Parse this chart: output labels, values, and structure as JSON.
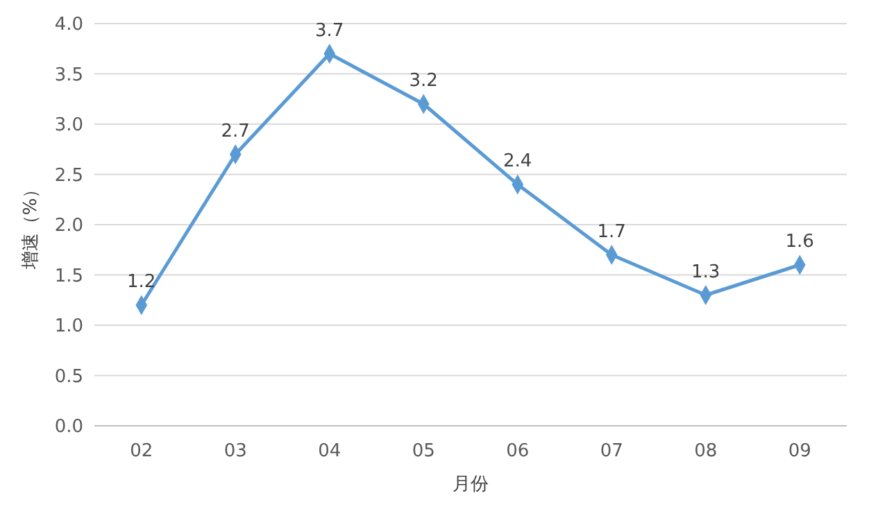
{
  "chart_data": {
    "type": "line",
    "xlabel": "月份",
    "ylabel": "增速（%）",
    "categories": [
      "02",
      "03",
      "04",
      "05",
      "06",
      "07",
      "08",
      "09"
    ],
    "series": [
      {
        "color": "#5b9bd5",
        "values": [
          1.2,
          2.7,
          3.7,
          3.2,
          2.4,
          1.7,
          1.3,
          1.6
        ]
      }
    ],
    "ylim": [
      0,
      4
    ],
    "yticks": [
      {
        "value": 0,
        "label": "0.0"
      },
      {
        "value": 0.5,
        "label": "0.5"
      },
      {
        "value": 1,
        "label": "1.0"
      },
      {
        "value": 1.5,
        "label": "1.5"
      },
      {
        "value": 2,
        "label": "2.0"
      },
      {
        "value": 2.5,
        "label": "2.5"
      },
      {
        "value": 3,
        "label": "3.0"
      },
      {
        "value": 3.5,
        "label": "3.5"
      },
      {
        "value": 4,
        "label": "4.0"
      }
    ],
    "grid": "y",
    "marker": "diamond",
    "line_style": "solid",
    "data_labels": true
  }
}
